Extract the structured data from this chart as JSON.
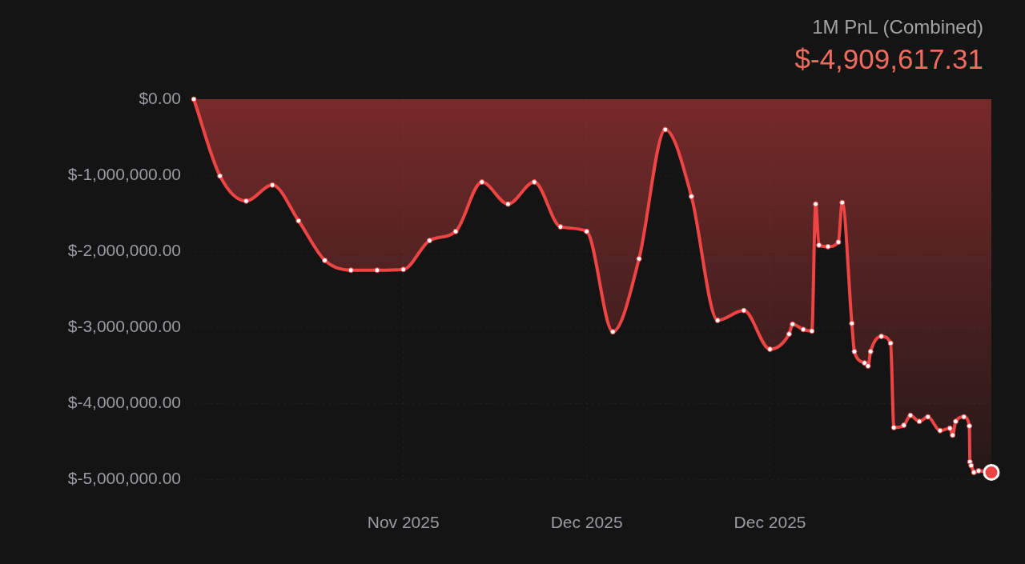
{
  "chart_data": {
    "type": "area",
    "title": "1M PnL (Combined)",
    "subtitle": "$-4,909,617.31",
    "x": [
      "2025-11-22",
      "2025-11-23",
      "2025-11-24",
      "2025-11-25",
      "2025-11-26",
      "2025-11-27",
      "2025-11-28",
      "2025-11-29",
      "2025-11-30",
      "2025-12-01",
      "2025-12-02",
      "2025-12-03",
      "2025-12-04",
      "2025-12-05",
      "2025-12-06",
      "2025-12-07",
      "2025-12-08",
      "2025-12-09",
      "2025-12-10",
      "2025-12-11",
      "2025-12-12",
      "2025-12-13",
      "2025-12-14",
      "2025-12-14T17:30",
      "2025-12-14T20:40",
      "2025-12-15T06:30",
      "2025-12-15T14:20",
      "2025-12-15T17:50",
      "2025-12-15T20:50",
      "2025-12-16T05:10",
      "2025-12-16T14:40",
      "2025-12-16T18:10",
      "2025-12-17T03:00",
      "2025-12-17T05:20",
      "2025-12-17T14:40",
      "2025-12-17T17:50",
      "2025-12-17T20:10",
      "2025-12-18T06:00",
      "2025-12-18T14:30",
      "2025-12-18T17:30",
      "2025-12-19T02:40",
      "2025-12-19T08:40",
      "2025-12-19T16:50",
      "2025-12-20T00:40",
      "2025-12-20T11:50",
      "2025-12-20T20:50",
      "2025-12-20T23:20",
      "2025-12-21T02:10",
      "2025-12-21T09:40",
      "2025-12-21T14:40",
      "2025-12-21T15:10",
      "2025-12-21T16:20",
      "2025-12-21T18:50",
      "2025-12-21T23:10",
      "2025-12-22T10:50"
    ],
    "series": [
      {
        "color": "#ef4444",
        "values": [
          0,
          -1010000,
          -1340000,
          -1130000,
          -1600000,
          -2120000,
          -2250000,
          -2250000,
          -2240000,
          -1860000,
          -1740000,
          -1090000,
          -1380000,
          -1090000,
          -1680000,
          -1740000,
          -3060000,
          -2100000,
          -400000,
          -1280000,
          -2910000,
          -2780000,
          -3290000,
          -3090000,
          -2960000,
          -3030000,
          -3050000,
          -1380000,
          -1920000,
          -1940000,
          -1880000,
          -1360000,
          -2950000,
          -3320000,
          -3470000,
          -3510000,
          -3320000,
          -3120000,
          -3210000,
          -4320000,
          -4290000,
          -4160000,
          -4240000,
          -4180000,
          -4360000,
          -4330000,
          -4420000,
          -4240000,
          -4180000,
          -4300000,
          -4770000,
          -4820000,
          -4910000,
          -4890000,
          -4910000
        ]
      }
    ],
    "xlim": [
      "2025-11-22",
      "2025-12-22T10:50"
    ],
    "xticks": [
      {
        "value": "2025-11-30",
        "label": "Nov 2025"
      },
      {
        "value": "2025-12-07",
        "label": "Dec 2025"
      },
      {
        "value": "2025-12-14",
        "label": "Dec 2025"
      }
    ],
    "ylim": [
      -5000000,
      0
    ],
    "yticks": [
      {
        "value": 0,
        "label": "$0.00"
      },
      {
        "value": -1000000,
        "label": "$-1,000,000.00"
      },
      {
        "value": -2000000,
        "label": "$-2,000,000.00"
      },
      {
        "value": -3000000,
        "label": "$-3,000,000.00"
      },
      {
        "value": -4000000,
        "label": "$-4,000,000.00"
      },
      {
        "value": -5000000,
        "label": "$-5,000,000.00"
      }
    ],
    "grid": true,
    "marker": "circle"
  }
}
